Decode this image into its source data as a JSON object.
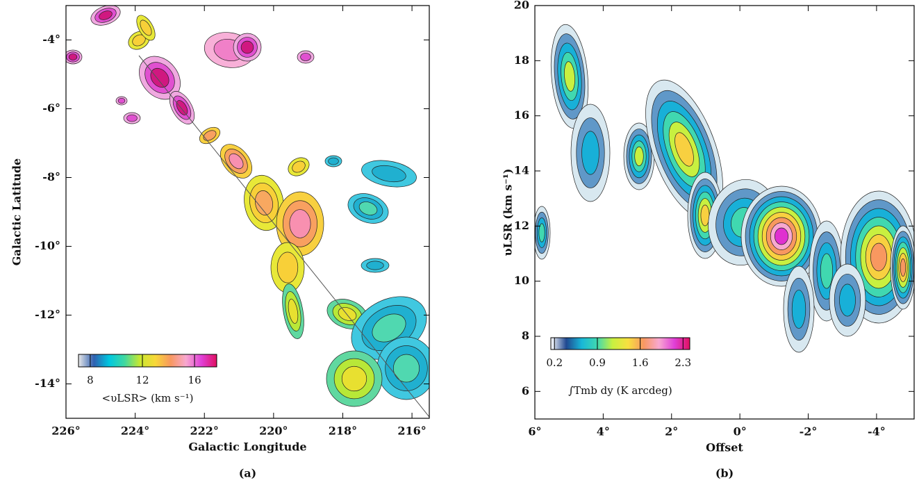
{
  "chart_data": [
    {
      "type": "contour-map",
      "caption": "(a)",
      "x_label": "Galactic Longitude",
      "y_label": "Galactic Latitude",
      "xlim": [
        226,
        215.5
      ],
      "ylim": [
        -15,
        -3
      ],
      "xticks": [
        {
          "value": 226,
          "label": "226°"
        },
        {
          "value": 224,
          "label": "224°"
        },
        {
          "value": 222,
          "label": "222°"
        },
        {
          "value": 220,
          "label": "220°"
        },
        {
          "value": 218,
          "label": "218°"
        },
        {
          "value": 216,
          "label": "216°"
        }
      ],
      "yticks": [
        {
          "value": -4,
          "label": "-4°"
        },
        {
          "value": -6,
          "label": "-6°"
        },
        {
          "value": -8,
          "label": "-8°"
        },
        {
          "value": -10,
          "label": "-10°"
        },
        {
          "value": -12,
          "label": "-12°"
        },
        {
          "value": -14,
          "label": "-14°"
        }
      ],
      "colorbar": {
        "label": "<υLSR> (km s⁻¹)",
        "clim": [
          7.1,
          17.7
        ],
        "ticks": [
          8,
          12,
          16
        ],
        "colormap": [
          "#e8e8e8",
          "#3060b0",
          "#00c8e0",
          "#40d8a0",
          "#c8e830",
          "#f8d838",
          "#f89860",
          "#f8a8d0",
          "#e040d8",
          "#e01060"
        ]
      }
    },
    {
      "type": "pv-diagram",
      "caption": "(b)",
      "x_label": "Offset",
      "y_label": "υLSR (km s⁻¹)",
      "xlim": [
        6,
        -5.1
      ],
      "ylim": [
        5,
        20
      ],
      "xticks": [
        {
          "value": 6,
          "label": "6°"
        },
        {
          "value": 4,
          "label": "4°"
        },
        {
          "value": 2,
          "label": "2°"
        },
        {
          "value": 0,
          "label": "0°"
        },
        {
          "value": -2,
          "label": "-2°"
        },
        {
          "value": -4,
          "label": "-4°"
        }
      ],
      "yticks": [
        6,
        8,
        10,
        12,
        14,
        16,
        18,
        20
      ],
      "colorbar": {
        "label": "∫Tmb dy (K arcdeg)",
        "clim": [
          0.14,
          2.41
        ],
        "ticks": [
          0.2,
          0.9,
          1.6,
          2.3
        ],
        "colormap": [
          "#ffffff",
          "#204890",
          "#18b8d8",
          "#40d8b0",
          "#c8f040",
          "#f8e040",
          "#f89860",
          "#f8a8d0",
          "#e040d8",
          "#e01060"
        ]
      }
    }
  ]
}
